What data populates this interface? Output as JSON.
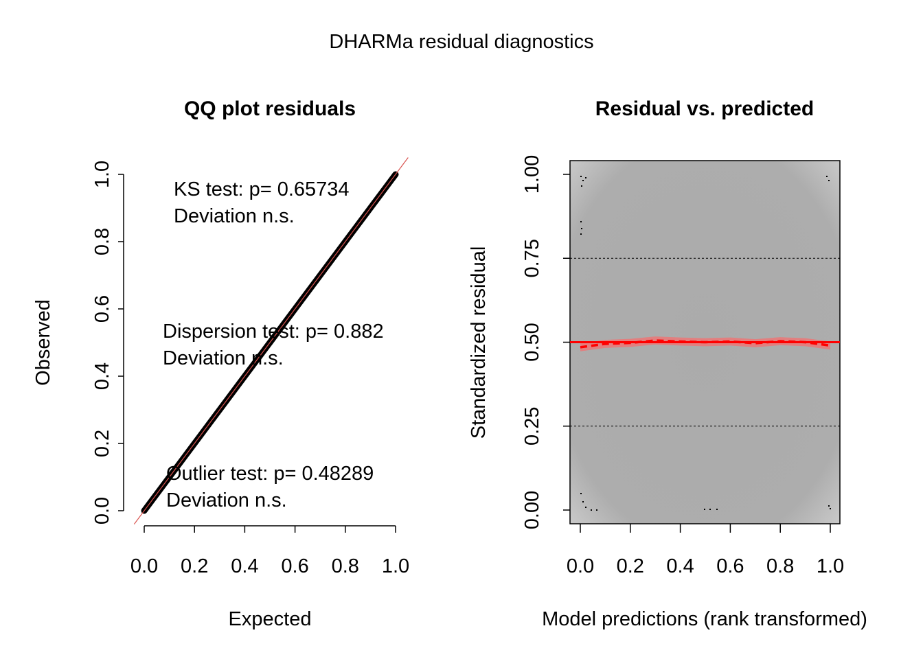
{
  "figure": {
    "title": "DHARMa residual diagnostics"
  },
  "chart_data": [
    {
      "type": "scatter",
      "title": "QQ plot residuals",
      "xlabel": "Expected",
      "ylabel": "Observed",
      "xlim": [
        0,
        1
      ],
      "ylim": [
        0,
        1
      ],
      "xticks": [
        "0.0",
        "0.2",
        "0.4",
        "0.6",
        "0.8",
        "1.0"
      ],
      "yticks": [
        "0.0",
        "0.2",
        "0.4",
        "0.6",
        "0.8",
        "1.0"
      ],
      "grid": false,
      "series": [
        {
          "values_note": "points lie on the 1:1 line",
          "x": [
            0.0,
            0.1,
            0.2,
            0.3,
            0.4,
            0.5,
            0.6,
            0.7,
            0.8,
            0.9,
            1.0
          ],
          "y": [
            0.0,
            0.1,
            0.2,
            0.3,
            0.4,
            0.5,
            0.6,
            0.7,
            0.8,
            0.9,
            1.0
          ]
        }
      ],
      "reference_line": {
        "intercept": 0,
        "slope": 1,
        "color": "#d9534f"
      },
      "annotations": {
        "ks_test": "KS test: p= 0.65734",
        "ks_deviation": "Deviation  n.s.",
        "dispersion_test": "Dispersion test: p= 0.882",
        "dispersion_deviation": "Deviation  n.s.",
        "outlier_test": "Outlier test: p= 0.48289",
        "outlier_deviation": "Deviation  n.s."
      }
    },
    {
      "type": "scatter",
      "title": "Residual vs. predicted",
      "xlabel": "Model predictions (rank transformed)",
      "ylabel": "Standardized residual",
      "xlim": [
        0,
        1
      ],
      "ylim": [
        0,
        1
      ],
      "xticks": [
        "0.0",
        "0.2",
        "0.4",
        "0.6",
        "0.8",
        "1.0"
      ],
      "yticks": [
        "0.00",
        "0.25",
        "0.50",
        "0.75",
        "1.00"
      ],
      "grid": false,
      "reference_lines": [
        0.25,
        0.5,
        0.75
      ],
      "smooth": {
        "color": "#ff0000",
        "x": [
          0.0,
          0.1,
          0.2,
          0.3,
          0.4,
          0.5,
          0.6,
          0.7,
          0.8,
          0.9,
          1.0
        ],
        "y": [
          0.485,
          0.495,
          0.498,
          0.505,
          0.502,
          0.5,
          0.502,
          0.497,
          0.503,
          0.5,
          0.49
        ]
      },
      "band_color": "#e87a7a",
      "cloud_color": "#a9a9a9"
    }
  ]
}
